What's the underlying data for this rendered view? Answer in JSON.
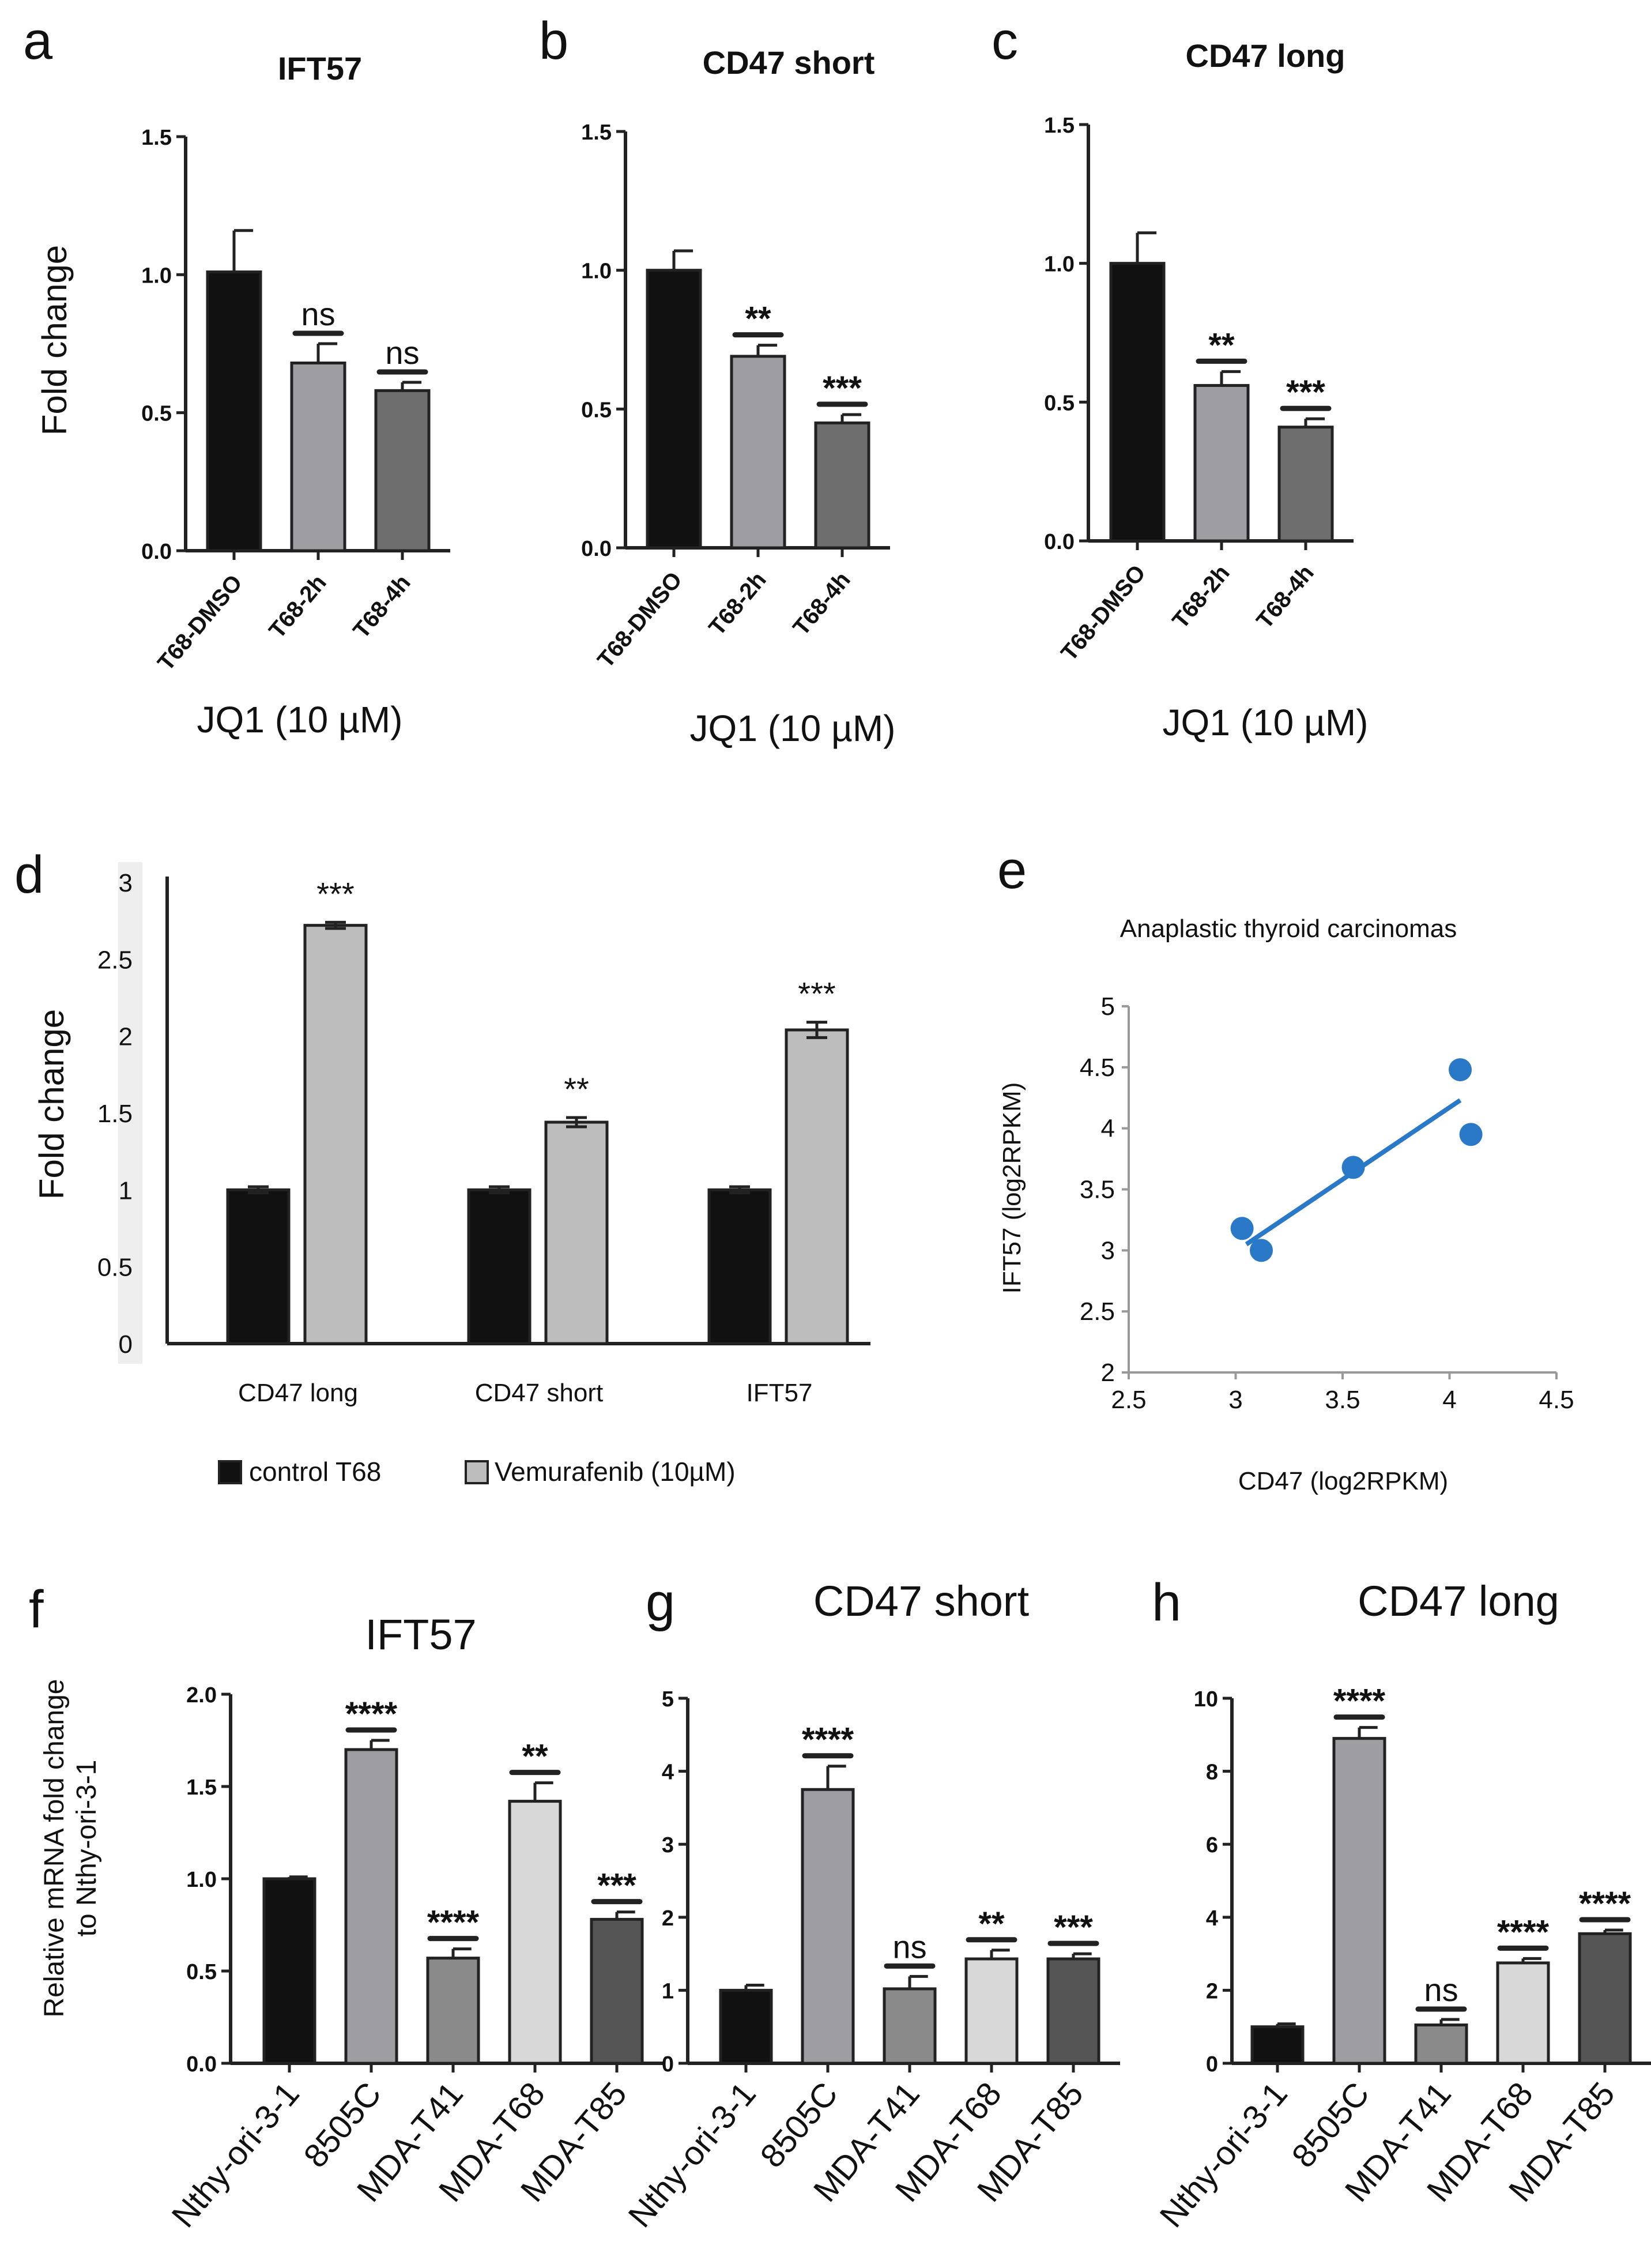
{
  "colors": {
    "black": "#111111",
    "gray_light": "#bdbdbd",
    "gray_mid": "#9e9ea2",
    "gray_dark": "#6e6e6e",
    "gray_darker": "#555555",
    "gray_medium": "#8a8a8a",
    "very_light": "#d8d8d8",
    "blue": "#2a78c8",
    "axis": "#222222"
  },
  "chart_data": [
    {
      "panel": "a",
      "type": "bar",
      "title": "IFT57",
      "categories": [
        "T68-DMSO",
        "T68-2h",
        "T68-4h"
      ],
      "values": [
        1.01,
        0.68,
        0.58
      ],
      "errors": [
        0.15,
        0.07,
        0.03
      ],
      "significance": [
        "",
        "ns",
        "ns"
      ],
      "ylabel": "Fold change",
      "xlabel": "JQ1 (10 µM)",
      "ylim": [
        0,
        1.5
      ],
      "yticks": [
        "0.0",
        "0.5",
        "1.0",
        "1.5"
      ],
      "bar_colors": [
        "black",
        "gray_mid",
        "gray_dark"
      ]
    },
    {
      "panel": "b",
      "type": "bar",
      "title": "CD47 short",
      "categories": [
        "T68-DMSO",
        "T68-2h",
        "T68-4h"
      ],
      "values": [
        1.0,
        0.69,
        0.45
      ],
      "errors": [
        0.07,
        0.04,
        0.03
      ],
      "significance": [
        "",
        "**",
        "***"
      ],
      "ylabel": "",
      "xlabel": "JQ1 (10 µM)",
      "ylim": [
        0,
        1.5
      ],
      "yticks": [
        "0.0",
        "0.5",
        "1.0",
        "1.5"
      ],
      "bar_colors": [
        "black",
        "gray_mid",
        "gray_dark"
      ]
    },
    {
      "panel": "c",
      "type": "bar",
      "title": "CD47 long",
      "categories": [
        "T68-DMSO",
        "T68-2h",
        "T68-4h"
      ],
      "values": [
        1.0,
        0.56,
        0.41
      ],
      "errors": [
        0.11,
        0.05,
        0.03
      ],
      "significance": [
        "",
        "**",
        "***"
      ],
      "ylabel": "",
      "xlabel": "JQ1 (10 µM)",
      "ylim": [
        0,
        1.5
      ],
      "yticks": [
        "0.0",
        "0.5",
        "1.0",
        "1.5"
      ],
      "bar_colors": [
        "black",
        "gray_mid",
        "gray_dark"
      ]
    },
    {
      "panel": "d",
      "type": "bar",
      "categories": [
        "CD47 long",
        "CD47 short",
        "IFT57"
      ],
      "series": [
        {
          "name": "control T68",
          "values": [
            1.0,
            1.0,
            1.0
          ],
          "errors": [
            0.02,
            0.02,
            0.02
          ],
          "color": "black"
        },
        {
          "name": "Vemurafenib (10µM)",
          "values": [
            2.72,
            1.44,
            2.04
          ],
          "errors": [
            0.02,
            0.03,
            0.05
          ],
          "color": "gray_light"
        }
      ],
      "significance": [
        "***",
        "**",
        "***"
      ],
      "ylabel": "Fold change",
      "ylim": [
        0,
        3
      ],
      "yticks": [
        "0",
        "0.5",
        "1",
        "1.5",
        "2",
        "2.5",
        "3"
      ],
      "legend": [
        "control T68",
        "Vemurafenib (10µM)"
      ]
    },
    {
      "panel": "e",
      "type": "scatter",
      "title": "Anaplastic thyroid carcinomas",
      "points": [
        {
          "x": 3.03,
          "y": 3.18
        },
        {
          "x": 3.12,
          "y": 3.0
        },
        {
          "x": 3.55,
          "y": 3.68
        },
        {
          "x": 4.05,
          "y": 4.48
        },
        {
          "x": 4.1,
          "y": 3.95
        }
      ],
      "trendline": {
        "x": [
          3.05,
          4.05
        ],
        "y": [
          3.05,
          4.23
        ]
      },
      "xlabel": "CD47 (log2RPKM)",
      "ylabel": "IFT57 (log2RPKM)",
      "xlim": [
        2.5,
        4.5
      ],
      "ylim": [
        2,
        5
      ],
      "xticks": [
        "2.5",
        "3",
        "3.5",
        "4",
        "4.5"
      ],
      "yticks": [
        "2",
        "2.5",
        "3",
        "3.5",
        "4",
        "4.5",
        "5"
      ]
    },
    {
      "panel": "f",
      "type": "bar",
      "title": "IFT57",
      "categories": [
        "Nthy-ori-3-1",
        "8505C",
        "MDA-T41",
        "MDA-T68",
        "MDA-T85"
      ],
      "values": [
        1.0,
        1.7,
        0.57,
        1.42,
        0.78
      ],
      "errors": [
        0.01,
        0.05,
        0.05,
        0.1,
        0.04
      ],
      "significance": [
        "",
        "****",
        "****",
        "**",
        "***"
      ],
      "ylabel": "Relative mRNA fold change\nto Nthy-ori-3-1",
      "ylim": [
        0,
        2
      ],
      "yticks": [
        "0.0",
        "0.5",
        "1.0",
        "1.5",
        "2.0"
      ],
      "bar_colors": [
        "black",
        "gray_mid",
        "gray_medium",
        "very_light",
        "gray_darker"
      ]
    },
    {
      "panel": "g",
      "type": "bar",
      "title": "CD47 short",
      "categories": [
        "Nthy-ori-3-1",
        "8505C",
        "MDA-T41",
        "MDA-T68",
        "MDA-T85"
      ],
      "values": [
        1.0,
        3.75,
        1.02,
        1.43,
        1.43
      ],
      "errors": [
        0.07,
        0.32,
        0.17,
        0.12,
        0.07
      ],
      "significance": [
        "",
        "****",
        "ns",
        "**",
        "***"
      ],
      "ylabel": "",
      "ylim": [
        0,
        5
      ],
      "yticks": [
        "0",
        "1",
        "2",
        "3",
        "4",
        "5"
      ],
      "bar_colors": [
        "black",
        "gray_mid",
        "gray_medium",
        "very_light",
        "gray_darker"
      ]
    },
    {
      "panel": "h",
      "type": "bar",
      "title": "CD47 long",
      "categories": [
        "Nthy-ori-3-1",
        "8505C",
        "MDA-T41",
        "MDA-T68",
        "MDA-T85"
      ],
      "values": [
        1.0,
        8.9,
        1.05,
        2.75,
        3.55
      ],
      "errors": [
        0.08,
        0.3,
        0.15,
        0.12,
        0.1
      ],
      "significance": [
        "",
        "****",
        "ns",
        "****",
        "****"
      ],
      "ylabel": "",
      "ylim": [
        0,
        10
      ],
      "yticks": [
        "0",
        "2",
        "4",
        "6",
        "8",
        "10"
      ],
      "bar_colors": [
        "black",
        "gray_mid",
        "gray_medium",
        "very_light",
        "gray_darker"
      ]
    }
  ]
}
